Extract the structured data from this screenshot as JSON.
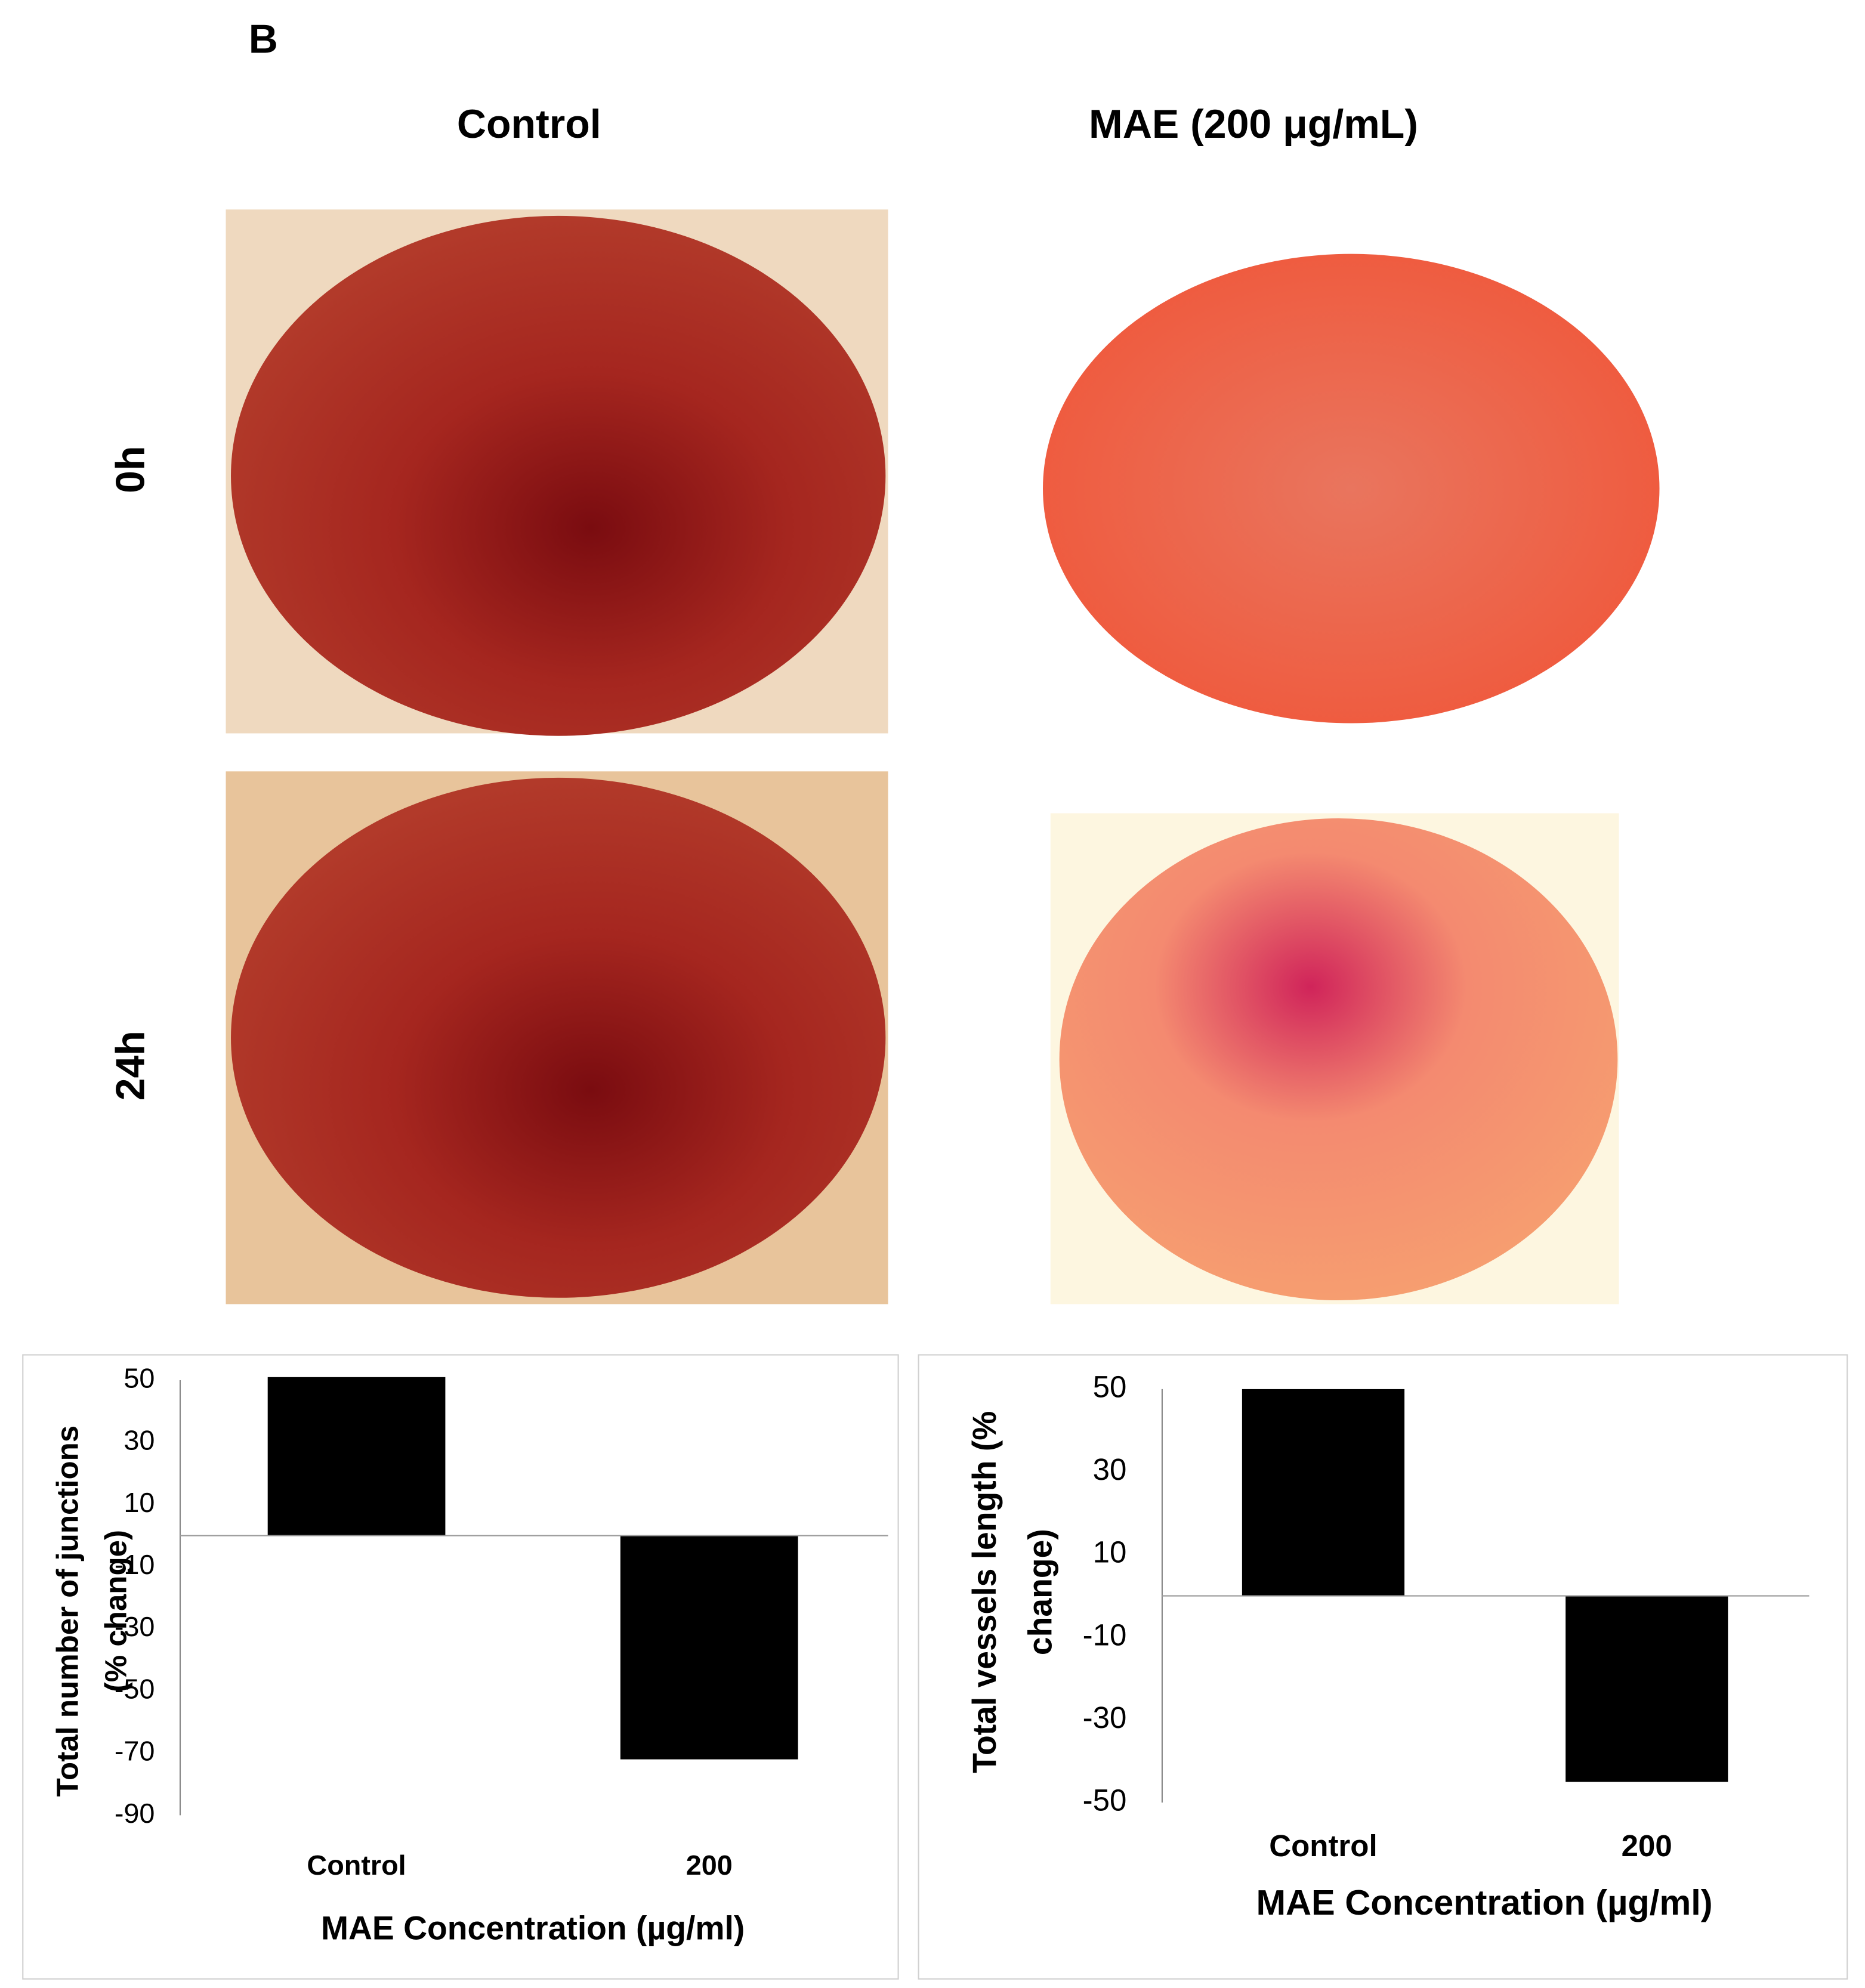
{
  "panel_label": "B",
  "column_headings": [
    "Control",
    "MAE (200 μg/mL)"
  ],
  "row_labels": [
    "0h",
    "24h"
  ],
  "chart_data": [
    {
      "type": "bar",
      "categories": [
        "Control",
        "200"
      ],
      "values": [
        51,
        -72
      ],
      "color": "#000000",
      "ylim": [
        -90,
        50
      ],
      "yticks": [
        -90,
        -70,
        -50,
        -30,
        -10,
        10,
        30,
        50
      ],
      "ylabel": [
        "Total number of junctions",
        "(% change)"
      ],
      "xlabel": "MAE Concentration (µg/ml)"
    },
    {
      "type": "bar",
      "categories": [
        "Control",
        "200"
      ],
      "values": [
        50,
        -45
      ],
      "color": "#000000",
      "ylim": [
        -50,
        50
      ],
      "yticks": [
        -50,
        -30,
        -10,
        10,
        30,
        50
      ],
      "ylabel": [
        "Total vessels length (%",
        "change)"
      ],
      "xlabel": "MAE Concentration (µg/ml)"
    }
  ]
}
